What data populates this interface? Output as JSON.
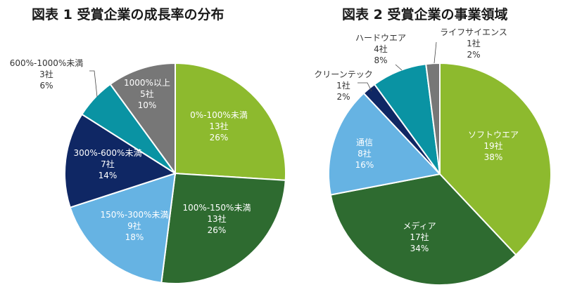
{
  "chart_data": [
    {
      "type": "pie",
      "title": "図表 1 受賞企業の成長率の分布",
      "unit": "社",
      "slices": [
        {
          "label": "0%-100%未満",
          "count": "13社",
          "percent": "26%",
          "value": 26,
          "color": "#8dba2e"
        },
        {
          "label": "100%-150%未満",
          "count": "13社",
          "percent": "26%",
          "value": 26,
          "color": "#2e6b30"
        },
        {
          "label": "150%-300%未満",
          "count": "9社",
          "percent": "18%",
          "value": 18,
          "color": "#66b3e3"
        },
        {
          "label": "300%-600%未満",
          "count": "7社",
          "percent": "14%",
          "value": 14,
          "color": "#0f2764"
        },
        {
          "label": "600%-1000%未満",
          "count": "3社",
          "percent": "6%",
          "value": 6,
          "color": "#0a93a3"
        },
        {
          "label": "1000%以上",
          "count": "5社",
          "percent": "10%",
          "value": 10,
          "color": "#777777"
        }
      ]
    },
    {
      "type": "pie",
      "title": "図表 2 受賞企業の事業領域",
      "unit": "社",
      "slices": [
        {
          "label": "ソフトウエア",
          "count": "19社",
          "percent": "38%",
          "value": 38,
          "color": "#8dba2e"
        },
        {
          "label": "メディア",
          "count": "17社",
          "percent": "34%",
          "value": 34,
          "color": "#2e6b30"
        },
        {
          "label": "通信",
          "count": "8社",
          "percent": "16%",
          "value": 16,
          "color": "#66b3e3"
        },
        {
          "label": "クリーンテック",
          "count": "1社",
          "percent": "2%",
          "value": 2,
          "color": "#0f2764"
        },
        {
          "label": "ハードウエア",
          "count": "4社",
          "percent": "8%",
          "value": 8,
          "color": "#0a93a3"
        },
        {
          "label": "ライフサイエンス",
          "count": "1社",
          "percent": "2%",
          "value": 2,
          "color": "#777777"
        }
      ]
    }
  ]
}
